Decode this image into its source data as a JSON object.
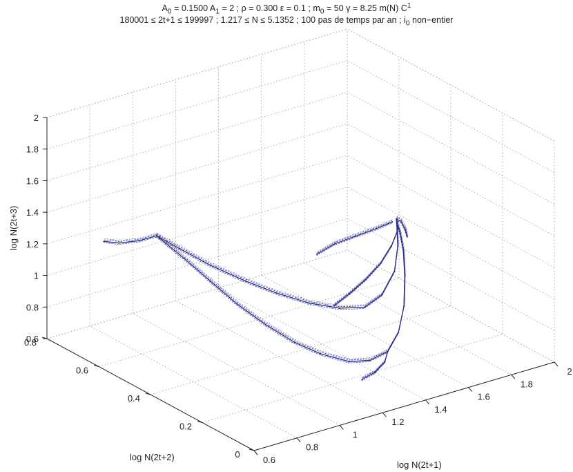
{
  "title": {
    "line1": "A0 = 0.1500 A1 = 2 ; ρ = 0.300 ε = 0.1 ; m0 = 50 γ = 8.25 m(N) C1",
    "line2": "180001 ≤ 2t+1 ≤ 199997 ; 1.217 ≤ N ≤ 5.1352 ; 100 pas de temps par an ; i0 non−entier"
  },
  "chart_data": {
    "type": "scatter",
    "projection": "3d",
    "title": "A0 = 0.1500 A1 = 2 ; ρ = 0.300 ε = 0.1 ; m0 = 50 γ = 8.25 m(N) C1 — 180001 ≤ 2t+1 ≤ 199997 ; 1.217 ≤ N ≤ 5.1352 ; 100 pas de temps par an ; i0 non−entier",
    "xlabel": "log N(2t+1)",
    "ylabel": "log N(2t+2)",
    "zlabel": "log N(2t+3)",
    "xlim": [
      0.6,
      2
    ],
    "ylim": [
      0,
      0.8
    ],
    "zlim": [
      0.6,
      2
    ],
    "x_ticks": [
      "0.6",
      "0.8",
      "1",
      "1.2",
      "1.4",
      "1.6",
      "1.8",
      "2"
    ],
    "y_ticks": [
      "0",
      "0.2",
      "0.4",
      "0.6",
      "0.8"
    ],
    "z_ticks": [
      "0.6",
      "0.8",
      "1",
      "1.2",
      "1.4",
      "1.6",
      "1.8",
      "2"
    ],
    "grid": true,
    "color": "#2b2f8f",
    "series": [
      {
        "points": [
          [
            0.87,
            0.6,
            1.32
          ],
          [
            0.9,
            0.59,
            1.27
          ],
          [
            0.95,
            0.56,
            1.18
          ],
          [
            1.0,
            0.5,
            1.07
          ],
          [
            1.05,
            0.44,
            0.96
          ],
          [
            1.1,
            0.37,
            0.87
          ],
          [
            1.15,
            0.3,
            0.8
          ],
          [
            1.2,
            0.24,
            0.76
          ],
          [
            1.26,
            0.18,
            0.74
          ],
          [
            1.32,
            0.15,
            0.75
          ],
          [
            1.38,
            0.13,
            0.8
          ],
          [
            1.43,
            0.13,
            0.9
          ],
          [
            1.48,
            0.15,
            1.03
          ],
          [
            1.52,
            0.18,
            1.18
          ],
          [
            1.55,
            0.21,
            1.3
          ],
          [
            1.57,
            0.24,
            1.38
          ],
          [
            1.58,
            0.26,
            1.42
          ],
          [
            1.59,
            0.27,
            1.43
          ],
          [
            1.61,
            0.27,
            1.41
          ],
          [
            1.63,
            0.27,
            1.35
          ],
          [
            1.64,
            0.27,
            1.3
          ]
        ]
      },
      {
        "points": [
          [
            1.38,
            0.13,
            0.8
          ],
          [
            1.33,
            0.1,
            0.78
          ],
          [
            1.26,
            0.08,
            0.76
          ],
          [
            1.2,
            0.08,
            0.74
          ]
        ]
      },
      {
        "points": [
          [
            0.87,
            0.6,
            1.32
          ],
          [
            0.93,
            0.56,
            1.25
          ],
          [
            1.0,
            0.5,
            1.17
          ],
          [
            1.08,
            0.43,
            1.1
          ],
          [
            1.15,
            0.37,
            1.05
          ],
          [
            1.22,
            0.3,
            1.02
          ],
          [
            1.3,
            0.25,
            1.0
          ],
          [
            1.38,
            0.22,
            1.0
          ],
          [
            1.45,
            0.21,
            1.06
          ],
          [
            1.52,
            0.22,
            1.17
          ],
          [
            1.56,
            0.24,
            1.3
          ],
          [
            1.58,
            0.26,
            1.4
          ],
          [
            1.59,
            0.27,
            1.43
          ]
        ]
      },
      {
        "points": [
          [
            0.87,
            0.6,
            1.32
          ],
          [
            0.86,
            0.66,
            1.24
          ],
          [
            0.84,
            0.72,
            1.18
          ],
          [
            0.83,
            0.77,
            1.15
          ]
        ]
      },
      {
        "points": [
          [
            1.3,
            0.27,
            1.0
          ],
          [
            1.36,
            0.26,
            1.06
          ],
          [
            1.42,
            0.25,
            1.13
          ],
          [
            1.48,
            0.24,
            1.22
          ],
          [
            1.53,
            0.24,
            1.31
          ],
          [
            1.57,
            0.25,
            1.38
          ],
          [
            1.59,
            0.27,
            1.43
          ]
        ]
      },
      {
        "points": [
          [
            1.34,
            0.37,
            1.22
          ],
          [
            1.4,
            0.35,
            1.28
          ],
          [
            1.46,
            0.32,
            1.33
          ],
          [
            1.52,
            0.29,
            1.38
          ],
          [
            1.57,
            0.27,
            1.42
          ]
        ]
      }
    ]
  }
}
